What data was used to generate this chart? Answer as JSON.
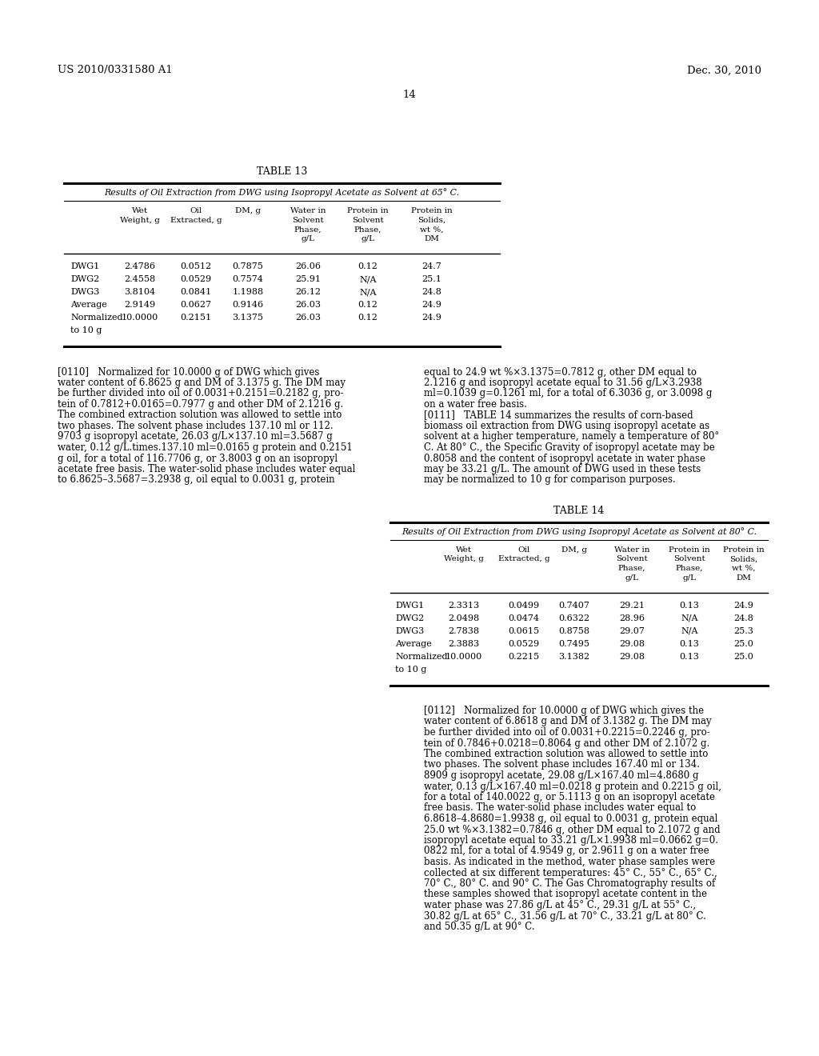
{
  "header_left": "US 2010/0331580 A1",
  "header_right": "Dec. 30, 2010",
  "page_number": "14",
  "table13_title": "TABLE 13",
  "table13_subtitle": "Results of Oil Extraction from DWG using Isopropyl Acetate as Solvent at 65° C.",
  "table13_rows": [
    [
      "DWG1",
      "2.4786",
      "0.0512",
      "0.7875",
      "26.06",
      "0.12",
      "24.7"
    ],
    [
      "DWG2",
      "2.4558",
      "0.0529",
      "0.7574",
      "25.91",
      "N/A",
      "25.1"
    ],
    [
      "DWG3",
      "3.8104",
      "0.0841",
      "1.1988",
      "26.12",
      "N/A",
      "24.8"
    ],
    [
      "Average",
      "2.9149",
      "0.0627",
      "0.9146",
      "26.03",
      "0.12",
      "24.9"
    ],
    [
      "Normalized",
      "10.0000",
      "0.2151",
      "3.1375",
      "26.03",
      "0.12",
      "24.9"
    ]
  ],
  "para110_left_lines": [
    "[0110]   Normalized for 10.0000 g of DWG which gives",
    "water content of 6.8625 g and DM of 3.1375 g. The DM may",
    "be further divided into oil of 0.0031+0.2151=0.2182 g, pro-",
    "tein of 0.7812+0.0165=0.7977 g and other DM of 2.1216 g.",
    "The combined extraction solution was allowed to settle into",
    "two phases. The solvent phase includes 137.10 ml or 112.",
    "9703 g isopropyl acetate, 26.03 g/L×137.10 ml=3.5687 g",
    "water, 0.12 g/L.times.137.10 ml=0.0165 g protein and 0.2151",
    "g oil, for a total of 116.7706 g, or 3.8003 g on an isopropyl",
    "acetate free basis. The water-solid phase includes water equal",
    "to 6.8625–3.5687=3.2938 g, oil equal to 0.0031 g, protein"
  ],
  "para110_right_lines": [
    "equal to 24.9 wt %×3.1375=0.7812 g, other DM equal to",
    "2.1216 g and isopropyl acetate equal to 31.56 g/L×3.2938",
    "ml=0.1039 g=0.1261 ml, for a total of 6.3036 g, or 3.0098 g",
    "on a water free basis.",
    "[0111]   TABLE 14 summarizes the results of corn-based",
    "biomass oil extraction from DWG using isopropyl acetate as",
    "solvent at a higher temperature, namely a temperature of 80°",
    "C. At 80° C., the Specific Gravity of isopropyl acetate may be",
    "0.8058 and the content of isopropyl acetate in water phase",
    "may be 33.21 g/L. The amount of DWG used in these tests",
    "may be normalized to 10 g for comparison purposes."
  ],
  "table14_title": "TABLE 14",
  "table14_subtitle": "Results of Oil Extraction from DWG using Isopropyl Acetate as Solvent at 80° C.",
  "table14_rows": [
    [
      "DWG1",
      "2.3313",
      "0.0499",
      "0.7407",
      "29.21",
      "0.13",
      "24.9"
    ],
    [
      "DWG2",
      "2.0498",
      "0.0474",
      "0.6322",
      "28.96",
      "N/A",
      "24.8"
    ],
    [
      "DWG3",
      "2.7838",
      "0.0615",
      "0.8758",
      "29.07",
      "N/A",
      "25.3"
    ],
    [
      "Average",
      "2.3883",
      "0.0529",
      "0.7495",
      "29.08",
      "0.13",
      "25.0"
    ],
    [
      "Normalized",
      "10.0000",
      "0.2215",
      "3.1382",
      "29.08",
      "0.13",
      "25.0"
    ]
  ],
  "para112_lines": [
    "[0112]   Normalized for 10.0000 g of DWG which gives the",
    "water content of 6.8618 g and DM of 3.1382 g. The DM may",
    "be further divided into oil of 0.0031+0.2215=0.2246 g, pro-",
    "tein of 0.7846+0.0218=0.8064 g and other DM of 2.1072 g.",
    "The combined extraction solution was allowed to settle into",
    "two phases. The solvent phase includes 167.40 ml or 134.",
    "8909 g isopropyl acetate, 29.08 g/L×167.40 ml=4.8680 g",
    "water, 0.13 g/L×167.40 ml=0.0218 g protein and 0.2215 g oil,",
    "for a total of 140.0022 g, or 5.1113 g on an isopropyl acetate",
    "free basis. The water-solid phase includes water equal to",
    "6.8618–4.8680=1.9938 g, oil equal to 0.0031 g, protein equal",
    "25.0 wt %×3.1382=0.7846 g, other DM equal to 2.1072 g and",
    "isopropyl acetate equal to 33.21 g/L×1.9938 ml=0.0662 g=0.",
    "0822 ml, for a total of 4.9549 g, or 2.9611 g on a water free",
    "basis. As indicated in the method, water phase samples were",
    "collected at six different temperatures: 45° C., 55° C., 65° C.,",
    "70° C., 80° C. and 90° C. The Gas Chromatography results of",
    "these samples showed that isopropyl acetate content in the",
    "water phase was 27.86 g/L at 45° C., 29.31 g/L at 55° C.,",
    "30.82 g/L at 65° C., 31.56 g/L at 70° C., 33.21 g/L at 80° C.",
    "and 50.35 g/L at 90° C."
  ],
  "bg_color": "#ffffff",
  "text_color": "#000000"
}
